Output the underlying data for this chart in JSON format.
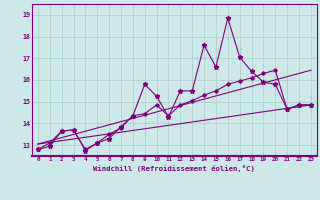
{
  "xlabel": "Windchill (Refroidissement éolien,°C)",
  "background_color": "#cce8e8",
  "grid_color": "#aacccc",
  "line_color": "#800080",
  "x_ticks": [
    0,
    1,
    2,
    3,
    4,
    5,
    6,
    7,
    8,
    9,
    10,
    11,
    12,
    13,
    14,
    15,
    16,
    17,
    18,
    19,
    20,
    21,
    22,
    23
  ],
  "ylim": [
    12.5,
    19.5
  ],
  "xlim": [
    -0.5,
    23.5
  ],
  "yticks": [
    13,
    14,
    15,
    16,
    17,
    18,
    19
  ],
  "series1": [
    12.8,
    12.95,
    13.65,
    13.7,
    12.75,
    13.1,
    13.3,
    13.85,
    14.35,
    15.8,
    15.25,
    14.3,
    15.5,
    15.5,
    17.6,
    16.6,
    18.85,
    17.05,
    16.4,
    15.9,
    15.8,
    14.65,
    14.85,
    14.85
  ],
  "series2": [
    12.8,
    13.1,
    13.65,
    13.7,
    12.8,
    13.1,
    13.5,
    13.8,
    14.35,
    14.45,
    14.85,
    14.35,
    14.85,
    15.05,
    15.3,
    15.5,
    15.8,
    15.95,
    16.1,
    16.3,
    16.45,
    14.65,
    14.85,
    14.85
  ],
  "series3_x": [
    0,
    23
  ],
  "series3_y": [
    13.05,
    16.45
  ],
  "series4_x": [
    0,
    23
  ],
  "series4_y": [
    13.05,
    14.85
  ]
}
